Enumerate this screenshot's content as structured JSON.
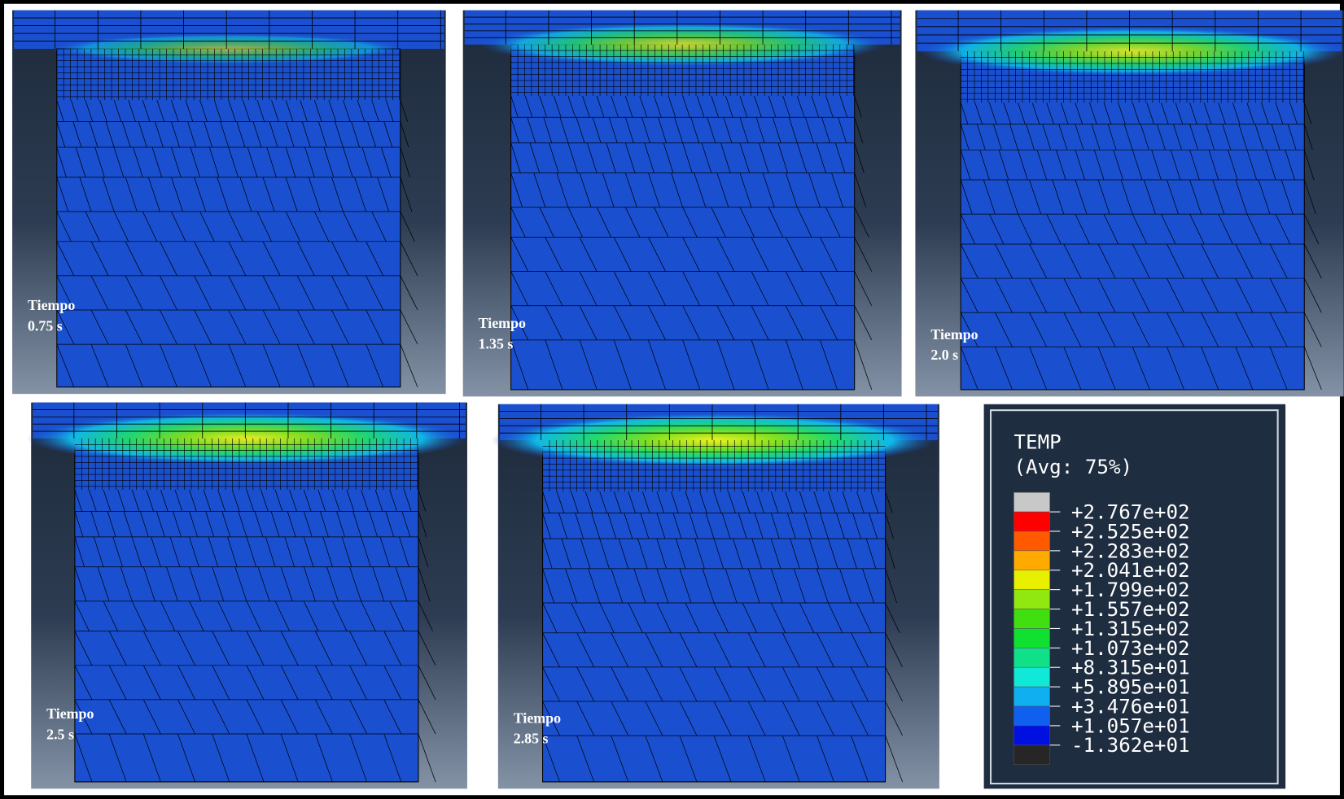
{
  "panels": [
    {
      "label": "Tiempo",
      "time": "0.75 s"
    },
    {
      "label": "Tiempo",
      "time": "1.35 s"
    },
    {
      "label": "Tiempo",
      "time": "2.0 s"
    },
    {
      "label": "Tiempo",
      "time": "2.5 s"
    },
    {
      "label": "Tiempo",
      "time": "2.85 s"
    }
  ],
  "legend": {
    "title": "TEMP",
    "subtitle": "(Avg: 75%)",
    "labels": [
      "+2.767e+02",
      "+2.525e+02",
      "+2.283e+02",
      "+2.041e+02",
      "+1.799e+02",
      "+1.557e+02",
      "+1.315e+02",
      "+1.073e+02",
      "+8.315e+01",
      "+5.895e+01",
      "+3.476e+01",
      "+1.057e+01",
      "-1.362e+01"
    ]
  }
}
